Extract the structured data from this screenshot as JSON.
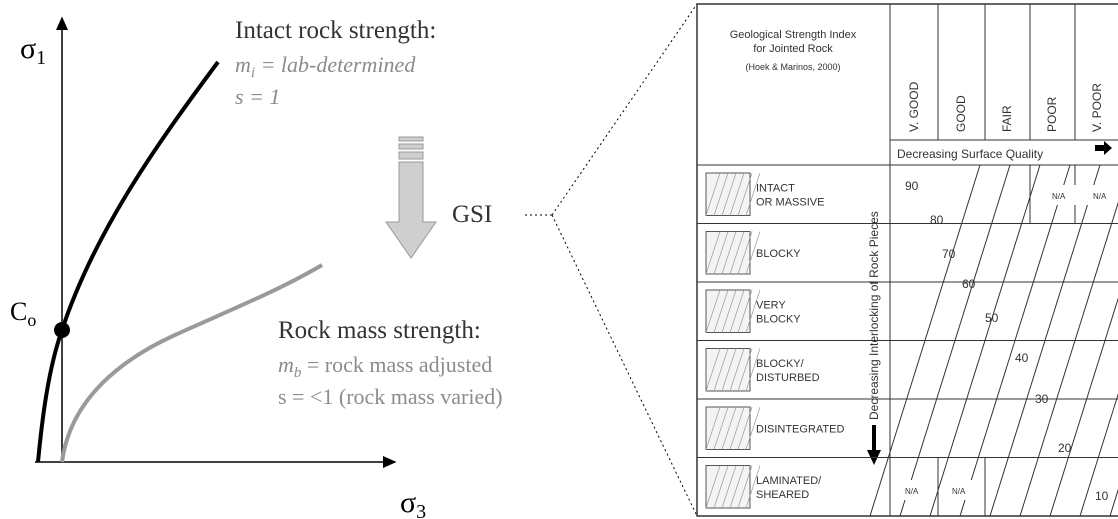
{
  "left": {
    "y_axis": {
      "symbol": "σ",
      "subscript": "1"
    },
    "x_axis": {
      "symbol": "σ",
      "subscript": "3"
    },
    "point": {
      "symbol": "C",
      "subscript": "o"
    },
    "intact": {
      "title": "Intact rock strength:",
      "m_symbol": "m",
      "m_subscript": "i",
      "m_text": " = lab-determined",
      "s_text": "s = 1"
    },
    "rock_mass": {
      "title": "Rock mass strength:",
      "m_symbol": "m",
      "m_subscript": "b",
      "m_text": " = rock mass adjusted",
      "s_text": "s = <1 (rock mass varied)"
    },
    "arrow_label": "GSI"
  },
  "table": {
    "title_lines": [
      "Geological Strength Index",
      "for Jointed Rock"
    ],
    "source": "(Hoek & Marinos, 2000)",
    "columns": [
      "V. GOOD",
      "GOOD",
      "FAIR",
      "POOR",
      "V. POOR"
    ],
    "surface_axis": "Decreasing Surface Quality",
    "interlock_axis": "Decreasing Interlocking of Rock Pieces",
    "rows": [
      [
        "INTACT",
        "OR MASSIVE"
      ],
      [
        "BLOCKY"
      ],
      [
        "VERY",
        "BLOCKY"
      ],
      [
        "BLOCKY/",
        "DISTURBED"
      ],
      [
        "DISINTEGRATED"
      ],
      [
        "LAMINATED/",
        "SHEARED"
      ]
    ],
    "contours": [
      90,
      80,
      70,
      60,
      50,
      40,
      30,
      20,
      10
    ],
    "na": "N/A"
  }
}
